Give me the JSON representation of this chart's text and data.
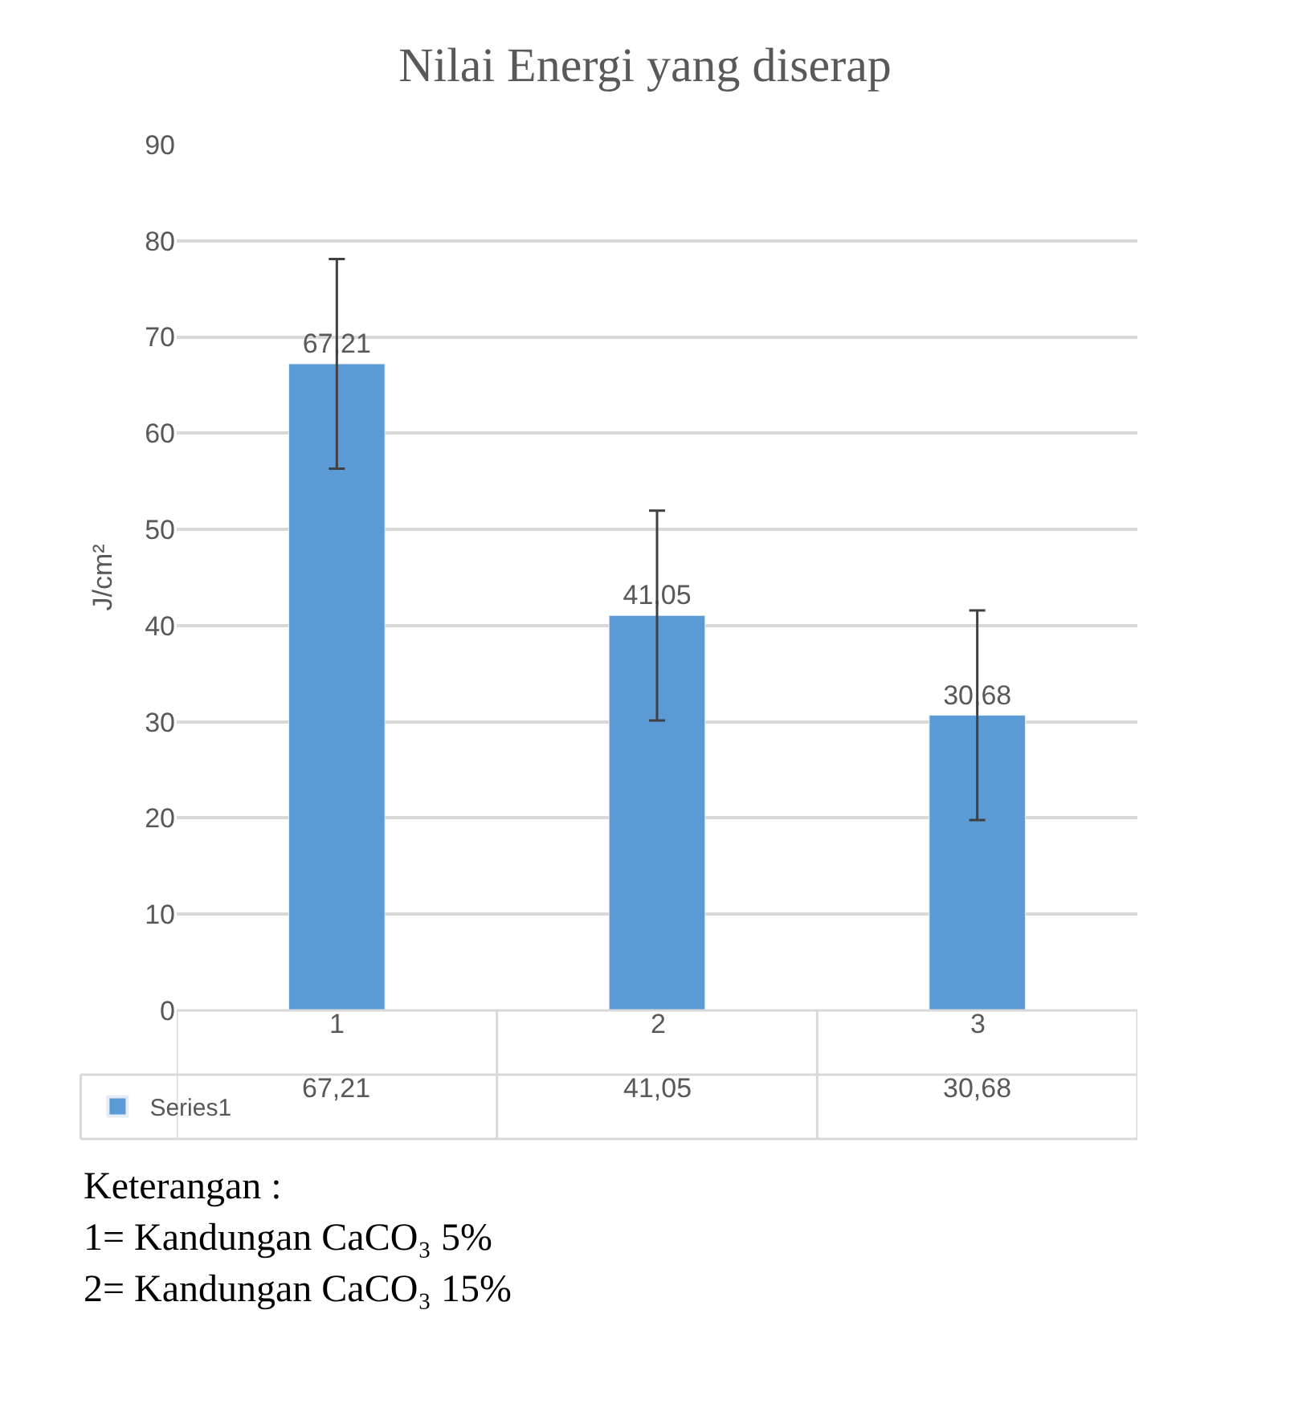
{
  "chart_data": {
    "type": "bar",
    "title": "Nilai Energi yang diserap",
    "ylabel": "J/cm²",
    "categories": [
      "1",
      "2",
      "3"
    ],
    "series": [
      {
        "name": "Series1",
        "color": "#5b9bd5",
        "values": [
          67.21,
          41.05,
          30.68
        ],
        "errors": [
          10.9,
          10.9,
          10.9
        ],
        "value_labels": [
          "67,21",
          "41,05",
          "30,68"
        ]
      }
    ],
    "ylim": [
      0,
      90
    ],
    "yticks": [
      0,
      10,
      20,
      30,
      40,
      50,
      60,
      70,
      80,
      90
    ],
    "grid": "y",
    "legend": "bottom",
    "annotations": [
      "Keterangan :",
      "1= Kandungan CaCO₃ 5%",
      "2= Kandungan CaCO₃ 15%"
    ]
  }
}
